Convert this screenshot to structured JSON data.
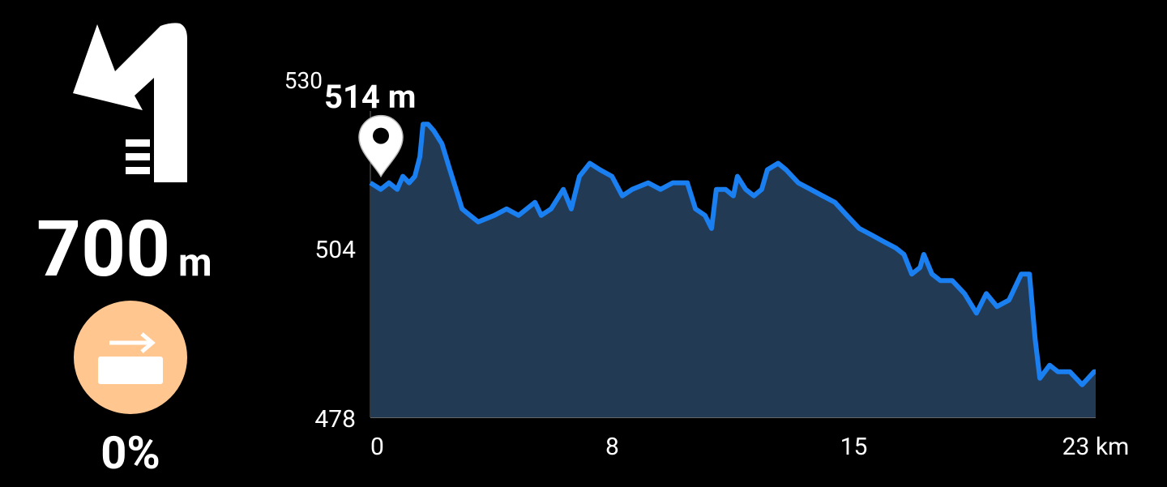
{
  "instruction": {
    "distance": "700",
    "unit": "m",
    "grade": "0%"
  },
  "chart_data": {
    "type": "area",
    "marker_label": "514 m",
    "x": [
      0,
      0.33,
      0.59,
      0.85,
      1.03,
      1.23,
      1.41,
      1.57,
      1.67,
      1.83,
      2.01,
      2.27,
      2.52,
      2.78,
      2.91,
      3.16,
      3.42,
      3.93,
      4.32,
      4.7,
      5.22,
      5.42,
      5.73,
      6.12,
      6.37,
      6.63,
      6.96,
      7.28,
      7.66,
      7.99,
      8.3,
      8.81,
      9.2,
      9.59,
      10.05,
      10.31,
      10.61,
      10.82,
      10.97,
      11.26,
      11.51,
      11.64,
      11.9,
      12.16,
      12.41,
      12.59,
      12.93,
      13.18,
      13.57,
      13.96,
      14.34,
      14.73,
      15.11,
      15.5,
      15.89,
      16.27,
      16.66,
      16.92,
      17.17,
      17.43,
      17.55,
      17.81,
      18.07,
      18.45,
      18.84,
      19.22,
      19.53,
      19.87,
      20.25,
      20.64,
      20.9,
      21.08,
      21.23,
      21.54,
      21.8,
      22.18,
      22.57,
      22.95,
      23
    ],
    "values": [
      514,
      513,
      514,
      513,
      515,
      514,
      515,
      518,
      523,
      523,
      522,
      520,
      516,
      512,
      510,
      509,
      508,
      509,
      510,
      509,
      511,
      509,
      510,
      513,
      510,
      515,
      517,
      516,
      515,
      512,
      513,
      514,
      513,
      514,
      514,
      510,
      509,
      507,
      513,
      513,
      512,
      515,
      513,
      512,
      513,
      516,
      517,
      516,
      514,
      513,
      512,
      511,
      509,
      507,
      506,
      505,
      504,
      503,
      500,
      501,
      503,
      500,
      499,
      499,
      497,
      494,
      497,
      495,
      496,
      500,
      500,
      490,
      484,
      486,
      485,
      485,
      483,
      485,
      485
    ],
    "color": "#1a7ff0",
    "fill": "#233a55",
    "xlim": [
      0,
      23
    ],
    "xticks": [
      0,
      {
        "value": 7.67,
        "label": "8"
      },
      {
        "value": 15.33,
        "label": "15"
      },
      {
        "value": 23,
        "label": "23 km"
      }
    ],
    "ylim": [
      478,
      530
    ],
    "yticks": [
      478,
      504,
      530
    ]
  }
}
